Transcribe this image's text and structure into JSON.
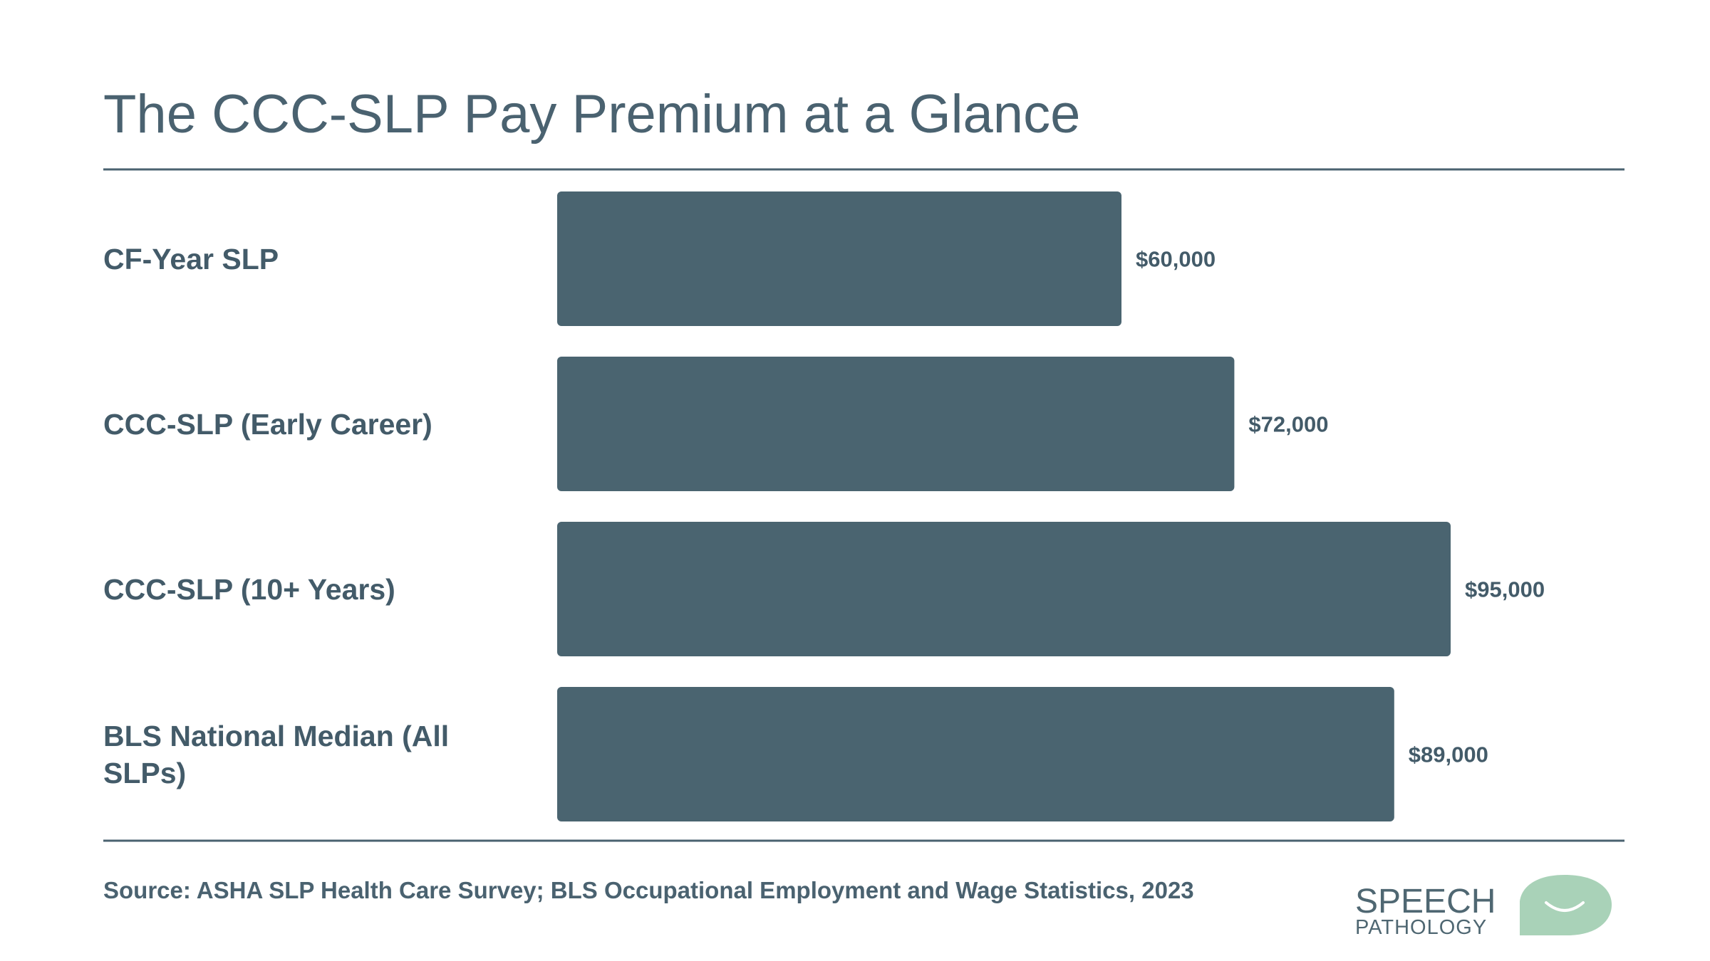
{
  "chart_data": {
    "type": "bar",
    "orientation": "horizontal",
    "title": "The CCC-SLP Pay Premium at a Glance",
    "categories": [
      "CF-Year SLP",
      "CCC-SLP (Early Career)",
      "CCC-SLP (10+ Years)",
      "BLS National Median (All SLPs)"
    ],
    "values": [
      60000,
      72000,
      95000,
      89000
    ],
    "value_labels": [
      "$60,000",
      "$72,000",
      "$95,000",
      "$89,000"
    ],
    "color": "#4a6470",
    "source": "Source: ASHA SLP Health Care Survey; BLS Occupational Employment and Wage Statistics, 2023"
  },
  "logo": {
    "line1": "SPEECH",
    "line2": "PATHOLOGY"
  }
}
